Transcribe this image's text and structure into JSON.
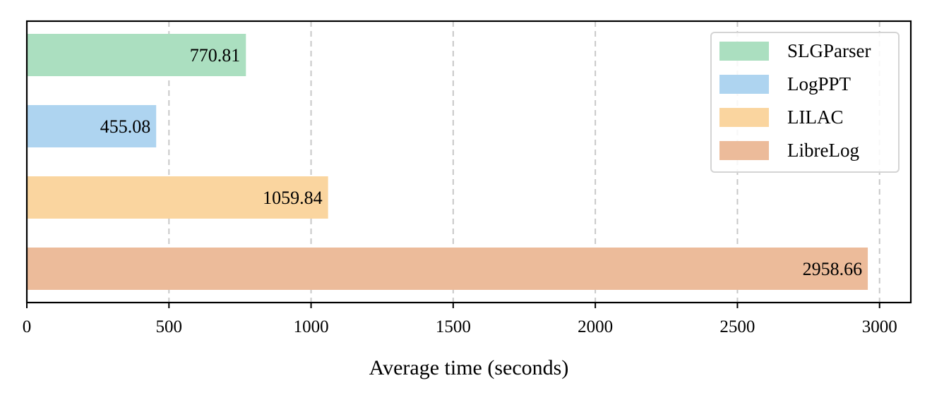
{
  "chart_data": {
    "type": "bar",
    "orientation": "horizontal",
    "categories": [
      "SLGParser",
      "LogPPT",
      "LILAC",
      "LibreLog"
    ],
    "values": [
      770.81,
      455.08,
      1059.84,
      2958.66
    ],
    "value_labels": [
      "770.81",
      "455.08",
      "1059.84",
      "2958.66"
    ],
    "colors": [
      "#abdfc0",
      "#aed4f0",
      "#fad59f",
      "#ecbb9a"
    ],
    "title": "",
    "xlabel": "Average time (seconds)",
    "ylabel": "",
    "xlim": [
      0,
      3110
    ],
    "xticks": [
      0,
      500,
      1000,
      1500,
      2000,
      2500,
      3000
    ],
    "xtick_labels": [
      "0",
      "500",
      "1000",
      "1500",
      "2000",
      "2500",
      "3000"
    ],
    "grid": "vertical dashed",
    "legend": {
      "position": "top-right",
      "entries": [
        "SLGParser",
        "LogPPT",
        "LILAC",
        "LibreLog"
      ]
    }
  }
}
